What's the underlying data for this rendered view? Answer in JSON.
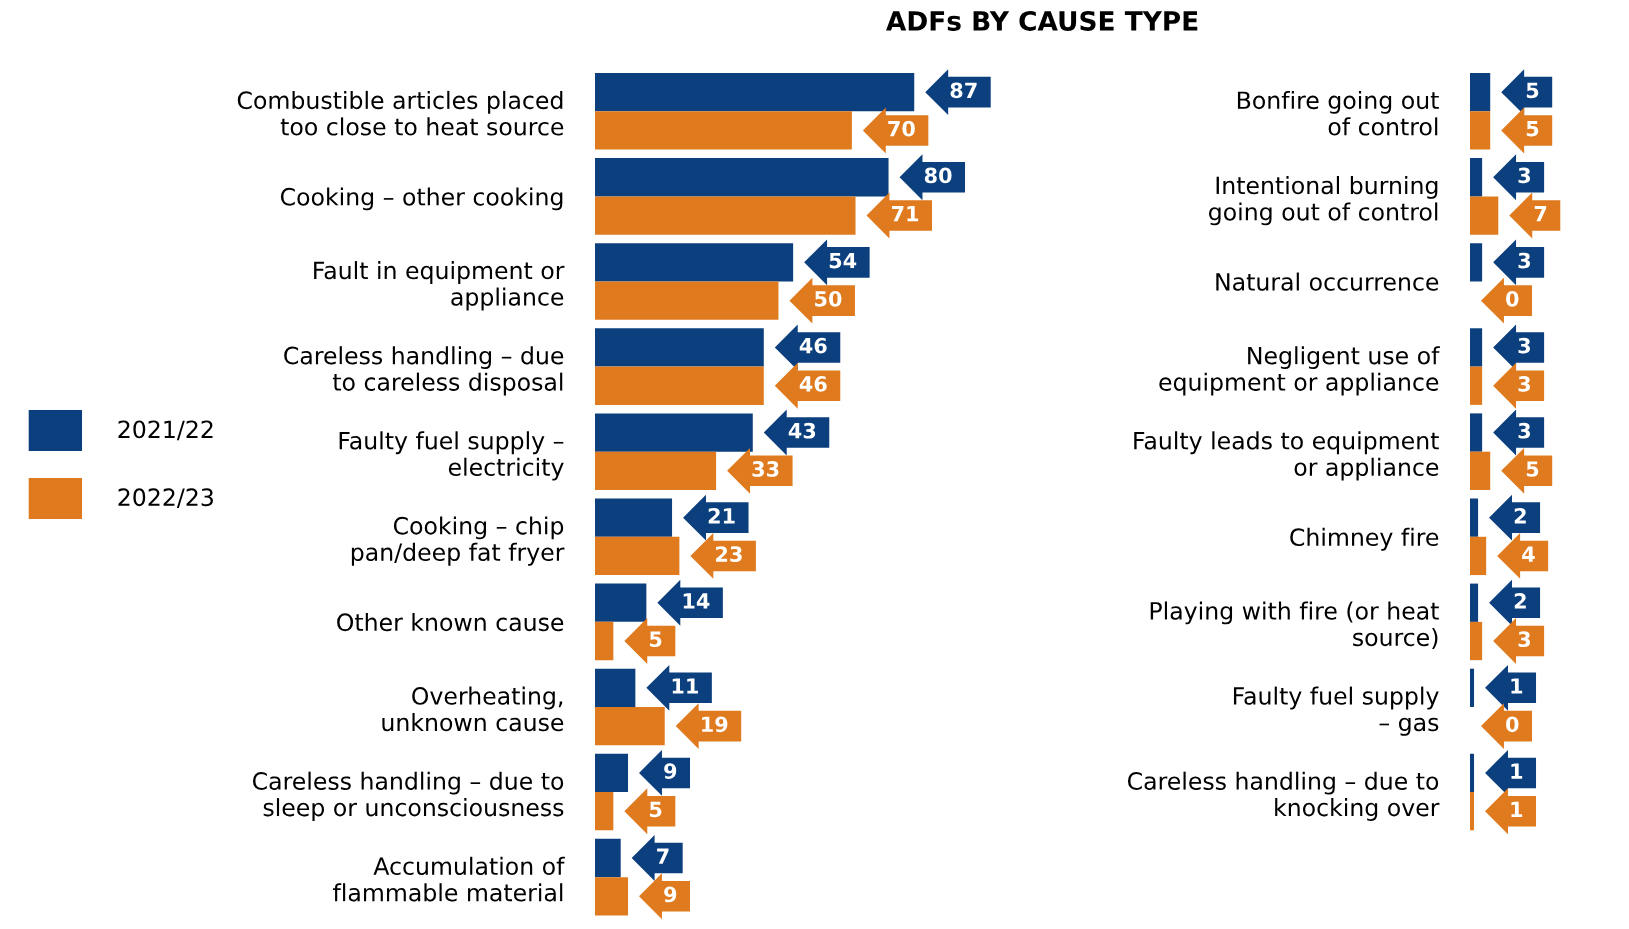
{
  "chart_data": [
    {
      "type": "bar",
      "orientation": "horizontal",
      "title": "ADFs BY CAUSE TYPE",
      "legend": "left",
      "data_labels": true,
      "tick_labels": "y",
      "categories": [
        "Combustible articles placed\ntoo close to heat source",
        "Cooking – other cooking",
        "Fault in equipment or\nappliance",
        "Careless handling – due\nto careless disposal",
        "Faulty fuel supply –\nelectricity",
        "Cooking – chip\npan/deep fat fryer",
        "Other known cause",
        "Overheating,\nunknown cause",
        "Careless handling – due to\nsleep or unconsciousness",
        "Accumulation of\nflammable material"
      ],
      "series": [
        {
          "name": "2021/22",
          "color": "#0b3f7e",
          "values": [
            87,
            80,
            54,
            46,
            43,
            21,
            14,
            11,
            9,
            7
          ]
        },
        {
          "name": "2022/23",
          "color": "#e07a1f",
          "values": [
            70,
            71,
            50,
            46,
            33,
            23,
            5,
            19,
            5,
            9
          ]
        }
      ]
    },
    {
      "type": "bar",
      "orientation": "horizontal",
      "data_labels": true,
      "tick_labels": "y",
      "categories": [
        "Bonfire going out\nof control",
        "Intentional burning\ngoing out of control",
        "Natural occurrence",
        "Negligent use of\nequipment or appliance",
        "Faulty leads to equipment\nor appliance",
        "Chimney fire",
        "Playing with fire (or heat\nsource)",
        "Faulty fuel supply\n– gas",
        "Careless handling – due to\nknocking over"
      ],
      "series": [
        {
          "color": "#0b3f7e",
          "values": [
            5,
            3,
            3,
            3,
            3,
            2,
            2,
            1,
            1
          ]
        },
        {
          "color": "#e07a1f",
          "values": [
            5,
            7,
            0,
            3,
            5,
            4,
            3,
            0,
            1
          ]
        }
      ]
    }
  ]
}
